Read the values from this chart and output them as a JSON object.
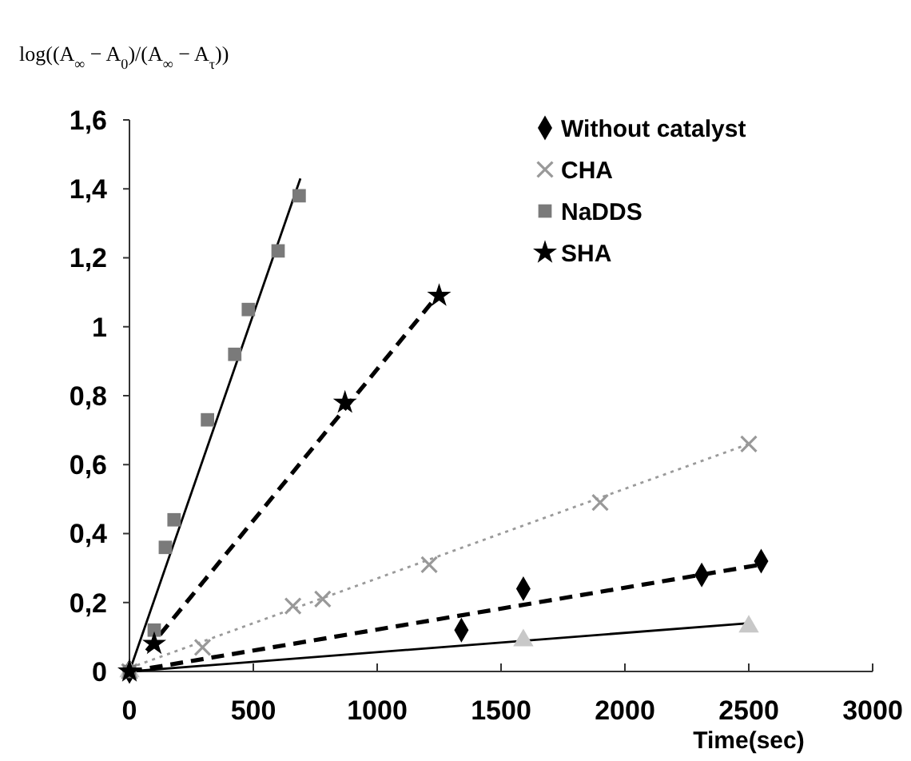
{
  "chart_data": {
    "type": "scatter",
    "ylabel": "log((A$_{∞}$ − A$_{0}$)/(A$_{∞}$ − A$_{τ}$))",
    "xlabel": "Time(sec)",
    "xlim": [
      0,
      3000
    ],
    "xticks": [
      0,
      500,
      1000,
      1500,
      2000,
      2500,
      3000
    ],
    "ylim": [
      0,
      1.6
    ],
    "yticks": [
      0,
      {
        "value": 0.2,
        "label": "0,2"
      },
      {
        "value": 0.4,
        "label": "0,4"
      },
      {
        "value": 0.6,
        "label": "0,6"
      },
      {
        "value": 0.8,
        "label": "0,8"
      },
      1,
      {
        "value": 1.2,
        "label": "1,2"
      },
      {
        "value": 1.4,
        "label": "1,4"
      },
      {
        "value": 1.6,
        "label": "1,6"
      }
    ],
    "grid": false,
    "legend": "top right",
    "series": [
      {
        "name": "Without catalyst",
        "color": "#000000",
        "marker": "diamond",
        "x": [
          0,
          1340,
          1590,
          2310,
          2550
        ],
        "values": [
          0,
          0.12,
          0.24,
          0.28,
          0.32
        ]
      },
      {
        "color": "#c8c8c8",
        "marker": "triangle",
        "x": [
          0,
          1590,
          2500
        ],
        "values": [
          0,
          0.09,
          0.13
        ]
      },
      {
        "name": "CHA",
        "color": "#999999",
        "marker": "cross",
        "x": [
          0,
          295,
          660,
          780,
          1210,
          1900,
          2500
        ],
        "values": [
          0,
          0.07,
          0.19,
          0.21,
          0.31,
          0.49,
          0.66
        ]
      },
      {
        "name": "NaDDS",
        "color": "#7a7a7a",
        "marker": "square",
        "x": [
          0,
          100,
          145,
          180,
          315,
          425,
          480,
          600,
          685
        ],
        "values": [
          0,
          0.12,
          0.36,
          0.44,
          0.73,
          0.92,
          1.05,
          1.22,
          1.38
        ]
      },
      {
        "name": "SHA",
        "color": "#000000",
        "marker": "star",
        "x": [
          0,
          100,
          870,
          1250
        ],
        "values": [
          0,
          0.08,
          0.78,
          1.09
        ]
      },
      {
        "type": "line",
        "color": "#000000",
        "line_style": "dashed",
        "x": [
          0,
          2550
        ],
        "values": [
          0,
          0.31
        ]
      },
      {
        "type": "line",
        "color": "#000000",
        "line_style": "solid",
        "x": [
          0,
          2500
        ],
        "values": [
          0,
          0.14
        ]
      },
      {
        "type": "line",
        "color": "#9a9a9a",
        "line_style": "dotted",
        "x": [
          0,
          2500
        ],
        "values": [
          0.01,
          0.66
        ]
      },
      {
        "type": "line",
        "color": "#000000",
        "line_style": "solid",
        "x": [
          0,
          690
        ],
        "values": [
          0,
          1.43
        ]
      },
      {
        "type": "line",
        "color": "#000000",
        "line_style": "dashed",
        "x": [
          70,
          1220
        ],
        "values": [
          0.06,
          1.07
        ]
      }
    ]
  }
}
